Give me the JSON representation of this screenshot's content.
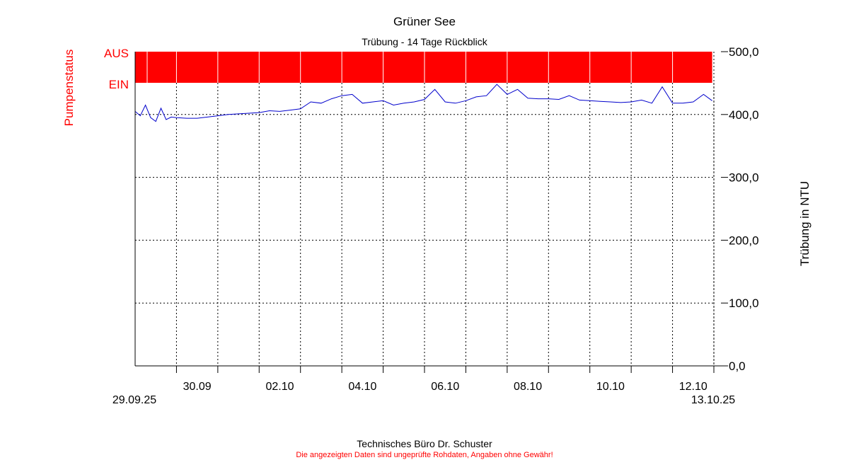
{
  "header": {
    "title": "Grüner See",
    "subtitle": "Trübung - 14 Tage Rückblick"
  },
  "footer": {
    "company": "Technisches Büro Dr. Schuster",
    "disclaimer": "Die angezeigten Daten sind ungeprüfte Rohdaten, Angaben ohne Gewähr!"
  },
  "colors": {
    "pump": "#ff0000",
    "series": "#0000cc",
    "grid": "#000000"
  },
  "chart_data": {
    "type": "line",
    "title": "Grüner See",
    "subtitle": "Trübung - 14 Tage Rückblick",
    "ylabel": "Trübung in NTU",
    "ylim": [
      0,
      500
    ],
    "yticks": [
      0,
      100,
      200,
      300,
      400,
      500
    ],
    "ytick_labels": [
      "0,0",
      "100,0",
      "200,0",
      "300,0",
      "400,0",
      "500,0"
    ],
    "xlim": [
      "2025-09-29T00:00",
      "2025-10-13T00:00"
    ],
    "x_start_label": "29.09.25",
    "x_end_label": "13.10.25",
    "x_tick_dates": [
      "2025-09-30",
      "2025-10-02",
      "2025-10-04",
      "2025-10-06",
      "2025-10-08",
      "2025-10-10",
      "2025-10-12"
    ],
    "x_tick_labels": [
      "30.09",
      "02.10",
      "04.10",
      "06.10",
      "08.10",
      "10.10",
      "12.10"
    ],
    "grid": true,
    "pump_status": {
      "axis_label": "Pumpenstatus",
      "on_label": "EIN",
      "off_label": "AUS",
      "state": "AUS",
      "state_from": "2025-09-29T00:00",
      "state_to": "2025-10-12T23:00"
    },
    "series": [
      {
        "x": [
          "2025-09-29T00:00",
          "2025-09-29T03:00",
          "2025-09-29T06:00",
          "2025-09-29T09:00",
          "2025-09-29T12:00",
          "2025-09-29T15:00",
          "2025-09-29T18:00",
          "2025-09-29T21:00",
          "2025-09-30T00:00",
          "2025-09-30T06:00",
          "2025-09-30T12:00",
          "2025-09-30T18:00",
          "2025-10-01T00:00",
          "2025-10-01T06:00",
          "2025-10-01T12:00",
          "2025-10-01T18:00",
          "2025-10-02T00:00",
          "2025-10-02T06:00",
          "2025-10-02T12:00",
          "2025-10-02T18:00",
          "2025-10-03T00:00",
          "2025-10-03T06:00",
          "2025-10-03T12:00",
          "2025-10-03T18:00",
          "2025-10-04T00:00",
          "2025-10-04T06:00",
          "2025-10-04T12:00",
          "2025-10-04T18:00",
          "2025-10-05T00:00",
          "2025-10-05T06:00",
          "2025-10-05T12:00",
          "2025-10-05T18:00",
          "2025-10-06T00:00",
          "2025-10-06T06:00",
          "2025-10-06T12:00",
          "2025-10-06T18:00",
          "2025-10-07T00:00",
          "2025-10-07T06:00",
          "2025-10-07T12:00",
          "2025-10-07T18:00",
          "2025-10-08T00:00",
          "2025-10-08T06:00",
          "2025-10-08T12:00",
          "2025-10-08T18:00",
          "2025-10-09T00:00",
          "2025-10-09T06:00",
          "2025-10-09T12:00",
          "2025-10-09T18:00",
          "2025-10-10T00:00",
          "2025-10-10T06:00",
          "2025-10-10T12:00",
          "2025-10-10T18:00",
          "2025-10-11T00:00",
          "2025-10-11T06:00",
          "2025-10-11T12:00",
          "2025-10-11T18:00",
          "2025-10-12T00:00",
          "2025-10-12T06:00",
          "2025-10-12T12:00",
          "2025-10-12T18:00",
          "2025-10-12T23:00"
        ],
        "values": [
          405,
          398,
          415,
          395,
          389,
          410,
          392,
          396,
          395,
          394,
          394,
          396,
          398,
          400,
          401,
          402,
          403,
          406,
          405,
          407,
          409,
          420,
          418,
          425,
          430,
          432,
          418,
          420,
          422,
          415,
          418,
          420,
          424,
          440,
          420,
          418,
          422,
          428,
          430,
          448,
          432,
          440,
          426,
          425,
          425,
          424,
          430,
          423,
          422,
          421,
          420,
          419,
          420,
          423,
          418,
          444,
          418,
          418,
          420,
          432,
          422
        ]
      }
    ]
  }
}
